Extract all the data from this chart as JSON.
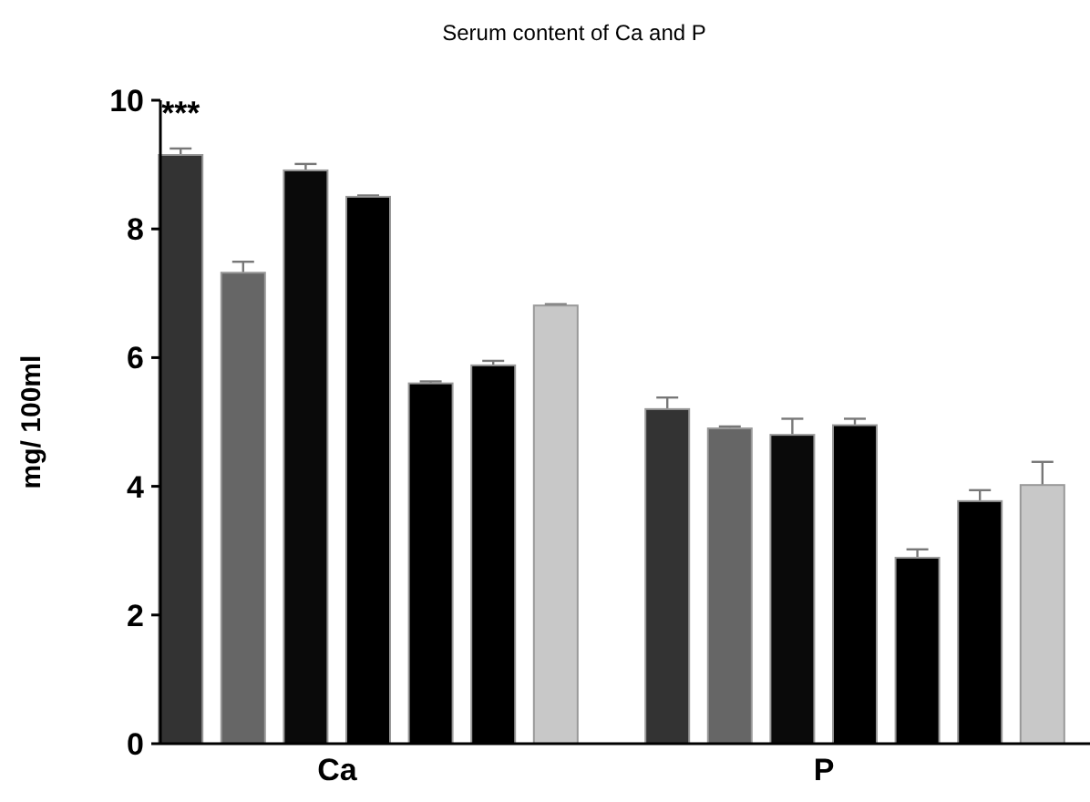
{
  "chart_data": {
    "type": "bar",
    "title": "Serum content of Ca and P",
    "ylabel": "mg/ 100ml",
    "categories": [
      "Ca",
      "P"
    ],
    "series": [
      {
        "color": "#333333",
        "values": [
          9.15,
          5.2
        ],
        "errors": [
          0.1,
          0.18
        ]
      },
      {
        "color": "#666666",
        "values": [
          7.32,
          4.9
        ],
        "errors": [
          0.17,
          0.03
        ]
      },
      {
        "color": "#0a0a0a",
        "values": [
          8.91,
          4.8
        ],
        "errors": [
          0.1,
          0.25
        ]
      },
      {
        "color": "#000000",
        "values": [
          8.5,
          4.95
        ],
        "errors": [
          0.02,
          0.1
        ]
      },
      {
        "color": "#000000",
        "values": [
          5.6,
          2.89
        ],
        "errors": [
          0.03,
          0.13
        ]
      },
      {
        "color": "#000000",
        "values": [
          5.88,
          3.77
        ],
        "errors": [
          0.07,
          0.17
        ]
      },
      {
        "color": "#c8c8c8",
        "values": [
          6.81,
          4.02
        ],
        "errors": [
          0.02,
          0.36
        ]
      }
    ],
    "ylim": [
      0,
      10
    ],
    "yticks": [
      0,
      2,
      4,
      6,
      8,
      10
    ],
    "annotations": [
      "***"
    ]
  }
}
